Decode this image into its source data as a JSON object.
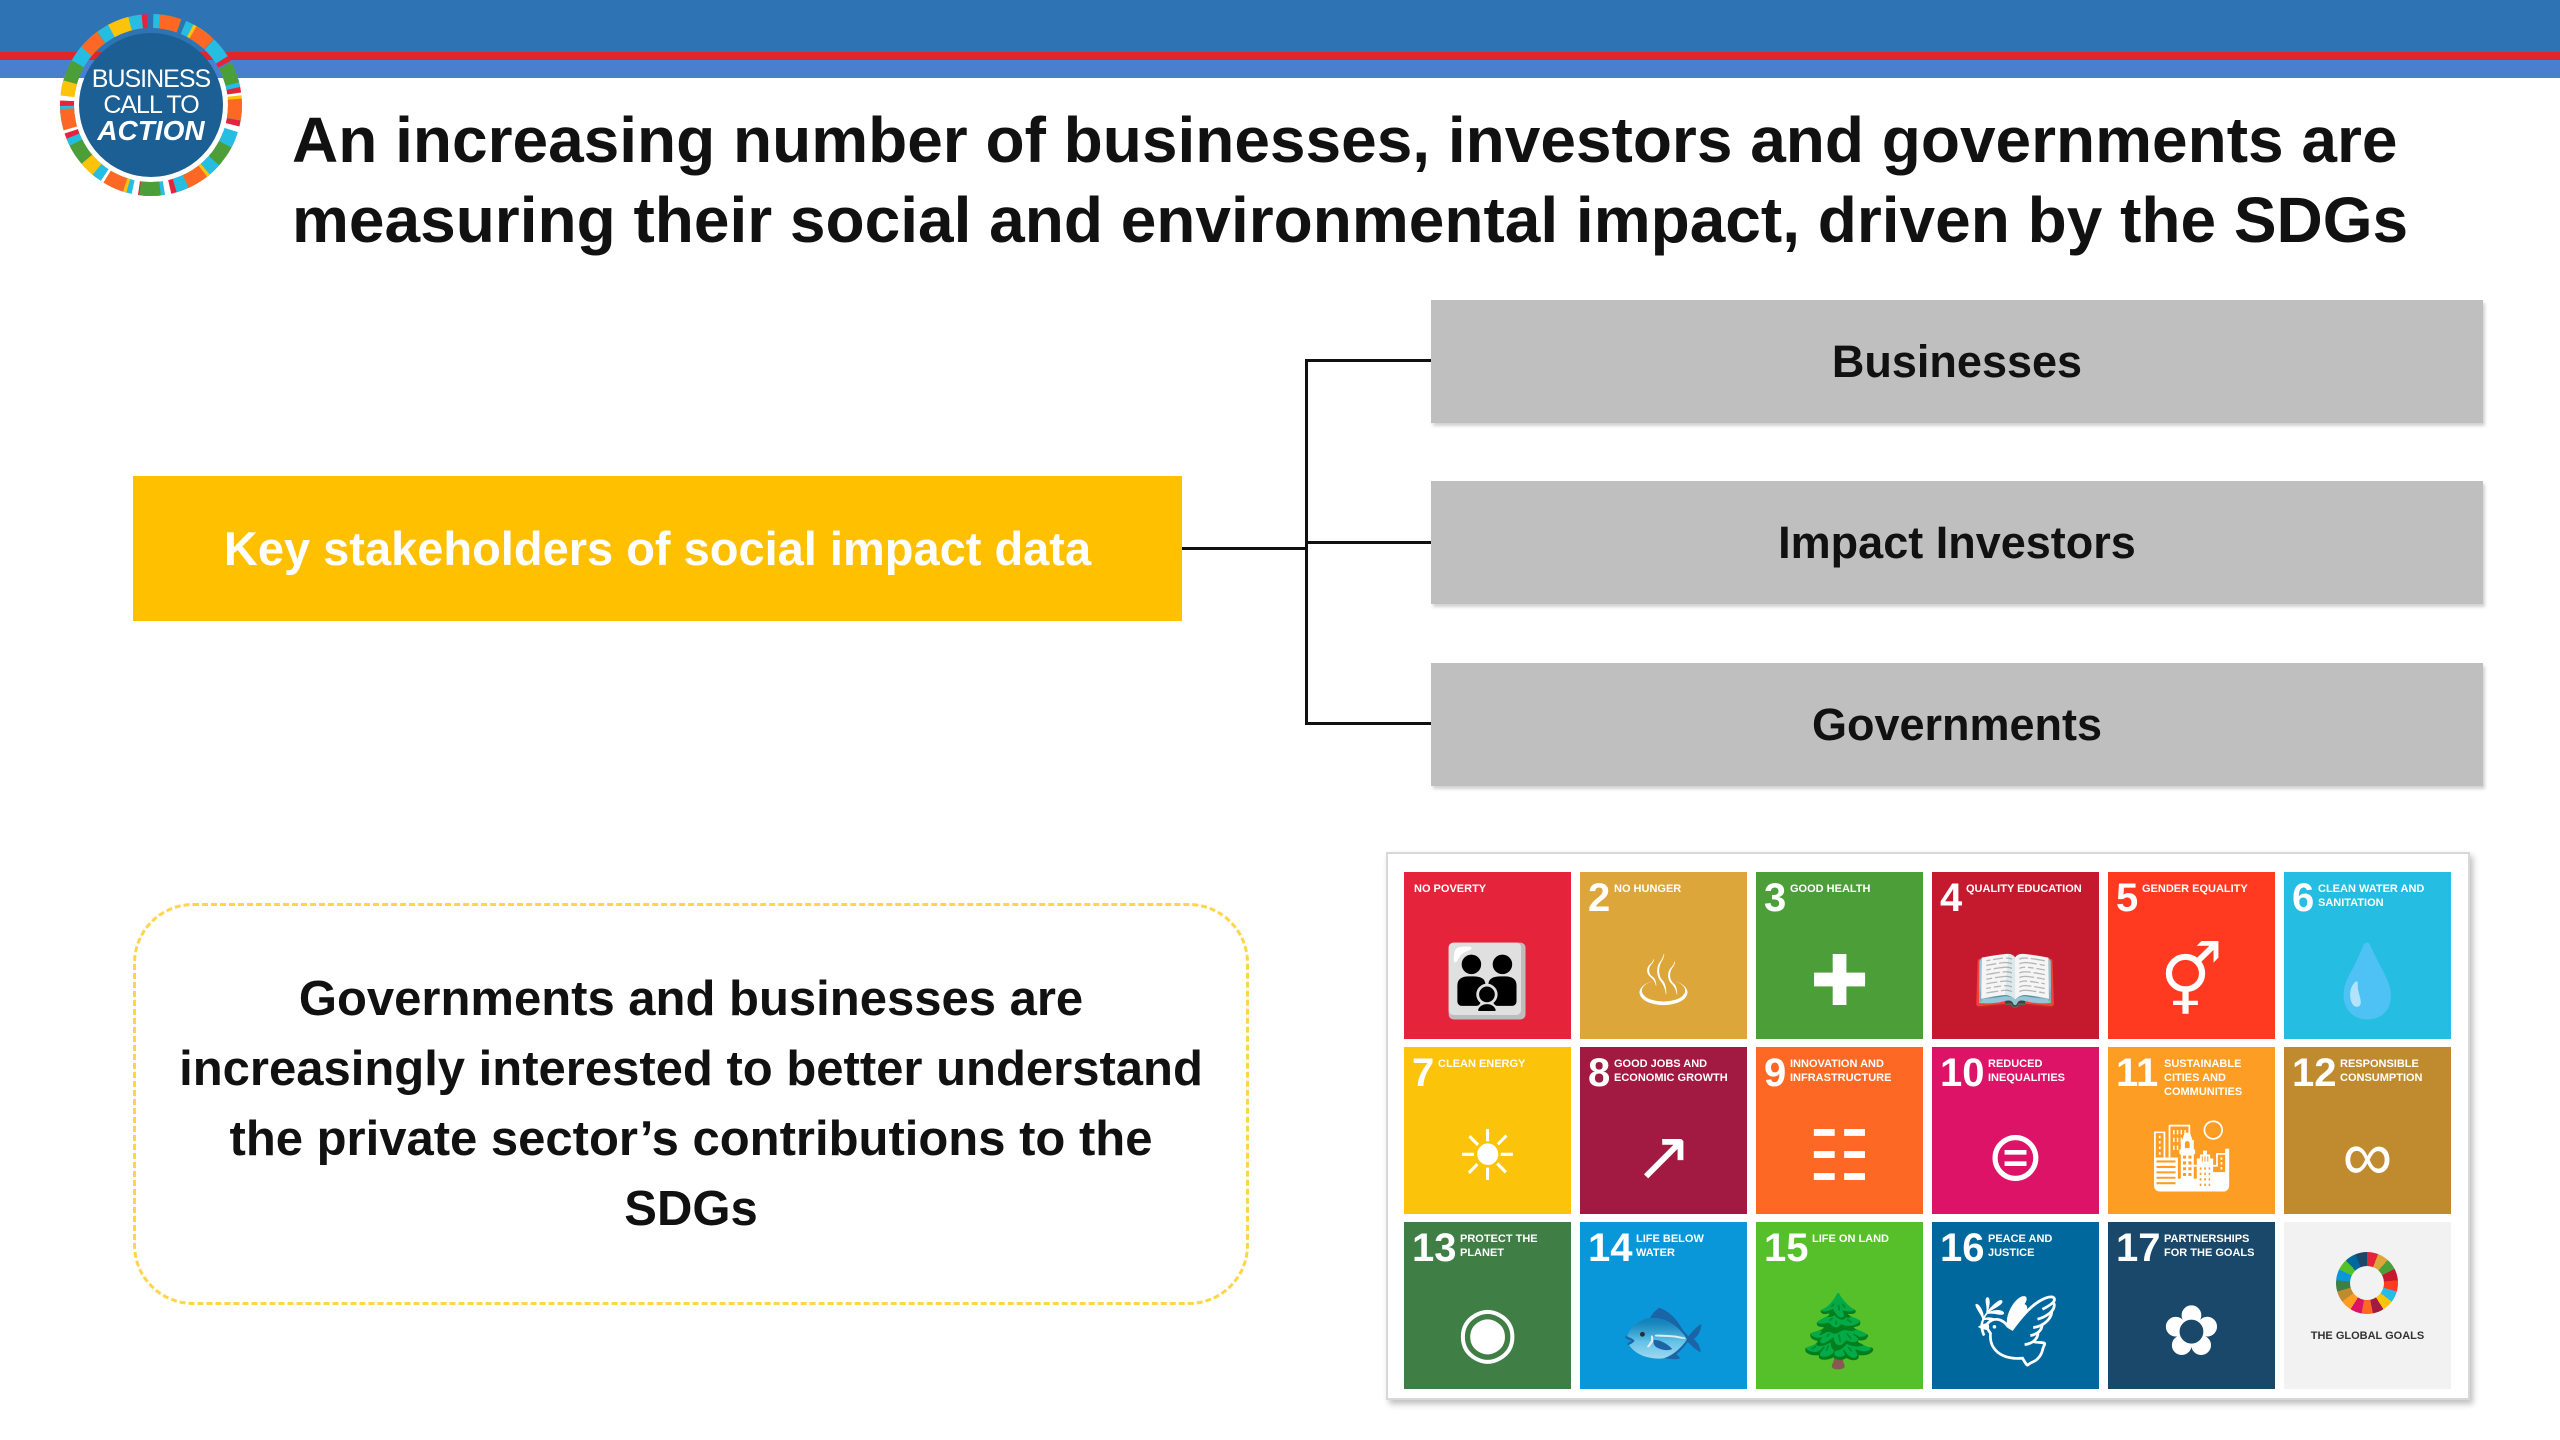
{
  "header": {
    "logo": {
      "line1": "BUSINESS",
      "line2": "CALL TO",
      "line3": "ACTION"
    },
    "title_line1": "An increasing number of businesses, investors and governments are",
    "title_line2": "measuring their social and environmental impact, driven by the SDGs"
  },
  "diagram": {
    "root": "Key stakeholders of social impact data",
    "stakeholders": [
      "Businesses",
      "Impact Investors",
      "Governments"
    ]
  },
  "note": {
    "line1": "Governments and businesses are",
    "line2": "increasingly interested to better understand",
    "line3": "the private sector’s contributions to the",
    "line4": "SDGs"
  },
  "sdg_tiles": [
    {
      "num": "",
      "label": "NO POVERTY",
      "color": "#e5243b",
      "icon": "people-icon"
    },
    {
      "num": "2",
      "label": "NO HUNGER",
      "color": "#dda63a",
      "icon": "bowl-icon"
    },
    {
      "num": "3",
      "label": "GOOD HEALTH",
      "color": "#4c9f38",
      "icon": "health-icon"
    },
    {
      "num": "4",
      "label": "QUALITY EDUCATION",
      "color": "#c5192d",
      "icon": "book-icon"
    },
    {
      "num": "5",
      "label": "GENDER EQUALITY",
      "color": "#ff3a21",
      "icon": "gender-icon"
    },
    {
      "num": "6",
      "label": "CLEAN WATER AND SANITATION",
      "color": "#26bde2",
      "icon": "water-drop-icon"
    },
    {
      "num": "7",
      "label": "CLEAN ENERGY",
      "color": "#fcc30b",
      "icon": "sun-icon"
    },
    {
      "num": "8",
      "label": "GOOD JOBS AND ECONOMIC GROWTH",
      "color": "#a21942",
      "icon": "growth-chart-icon"
    },
    {
      "num": "9",
      "label": "INNOVATION AND INFRASTRUCTURE",
      "color": "#fd6925",
      "icon": "infrastructure-icon"
    },
    {
      "num": "10",
      "label": "REDUCED INEQUALITIES",
      "color": "#dd1367",
      "icon": "equal-icon"
    },
    {
      "num": "11",
      "label": "SUSTAINABLE CITIES AND COMMUNITIES",
      "color": "#fd9d24",
      "icon": "city-icon"
    },
    {
      "num": "12",
      "label": "RESPONSIBLE CONSUMPTION",
      "color": "#bf8b2e",
      "icon": "infinity-icon"
    },
    {
      "num": "13",
      "label": "PROTECT THE PLANET",
      "color": "#3f7e44",
      "icon": "eye-globe-icon"
    },
    {
      "num": "14",
      "label": "LIFE BELOW WATER",
      "color": "#0a97d9",
      "icon": "fish-icon"
    },
    {
      "num": "15",
      "label": "LIFE ON LAND",
      "color": "#56c02b",
      "icon": "tree-icon"
    },
    {
      "num": "16",
      "label": "PEACE AND JUSTICE",
      "color": "#00689d",
      "icon": "dove-icon"
    },
    {
      "num": "17",
      "label": "PARTNERSHIPS FOR THE GOALS",
      "color": "#19486a",
      "icon": "rings-icon"
    }
  ],
  "global_goals_label": "THE GLOBAL GOALS"
}
